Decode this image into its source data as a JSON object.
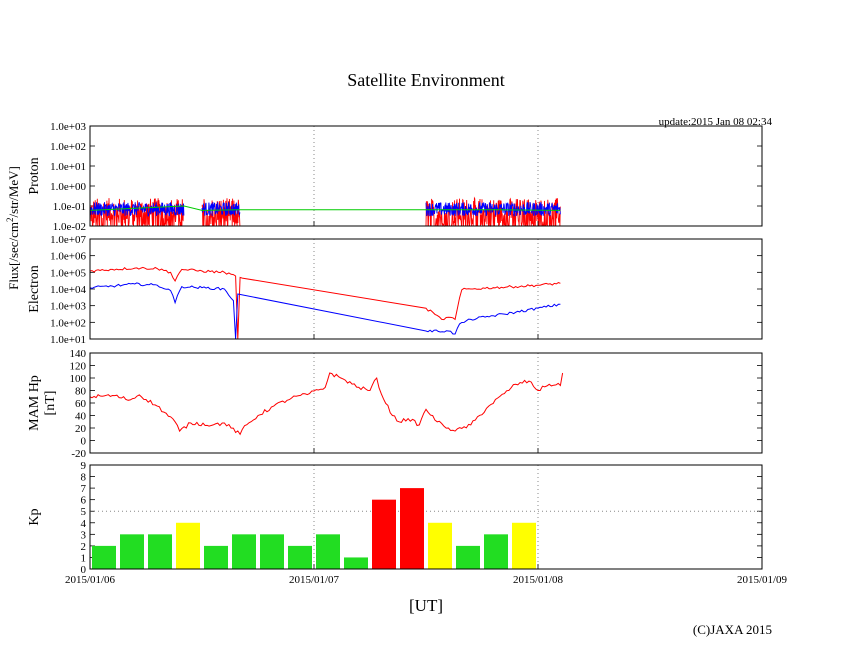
{
  "page": {
    "title": "Satellite Environment",
    "update": "update:2015 Jan 08 02:34",
    "copyright": "(C)JAXA 2015",
    "x_axis_label": "[UT]",
    "x_ticks": [
      "2015/01/06",
      "2015/01/07",
      "2015/01/08",
      "2015/01/09"
    ],
    "flux_label_prefix": "Flux[/sec/cm",
    "flux_label_sup": "2",
    "flux_label_suffix": "/str/MeV]"
  },
  "colors": {
    "red": "#ff0000",
    "blue": "#0000ff",
    "green": "#00cc00",
    "kp_green": "#22dd22",
    "kp_yellow": "#ffff00",
    "kp_red": "#ff0000",
    "grid": "#888888"
  },
  "chart_data": [
    {
      "type": "line",
      "panel": "proton",
      "ylabel": "Proton",
      "scale": "log",
      "ylim": [
        0.01,
        1000
      ],
      "yticks": [
        "1.0e-02",
        "1.0e-01",
        "1.0e+00",
        "1.0e+01",
        "1.0e+02",
        "1.0e+03"
      ],
      "xlim_days": [
        0,
        3
      ],
      "series": [
        {
          "color": "red",
          "noise": "spiky",
          "x": [
            0,
            0.42,
            0.5,
            0.67,
            1.5,
            1.82,
            2.1
          ],
          "segments": [
            [
              0,
              0.42
            ],
            [
              0.5,
              0.67
            ],
            [
              1.5,
              2.1
            ]
          ],
          "y": [
            0.05,
            0.05,
            0.05,
            0.05,
            0.05,
            0.05,
            0.05
          ]
        },
        {
          "color": "blue",
          "noise": "band",
          "x": [
            0,
            0.42,
            0.5,
            0.67,
            1.5,
            1.82,
            2.1
          ],
          "segments": [
            [
              0,
              0.42
            ],
            [
              0.5,
              0.67
            ],
            [
              1.5,
              2.1
            ]
          ],
          "y": [
            0.07,
            0.07,
            0.07,
            0.07,
            0.07,
            0.07,
            0.07
          ]
        },
        {
          "color": "green",
          "x": [
            0,
            0.42,
            0.5,
            0.67,
            1.5,
            1.82,
            2.1
          ],
          "y": [
            0.06,
            0.1,
            0.06,
            0.065,
            0.065,
            0.065,
            0.06
          ]
        }
      ]
    },
    {
      "type": "line",
      "panel": "electron",
      "ylabel": "Electron",
      "scale": "log",
      "ylim": [
        10,
        10000000
      ],
      "yticks": [
        "1.0e+01",
        "1.0e+02",
        "1.0e+03",
        "1.0e+04",
        "1.0e+05",
        "1.0e+06",
        "1.0e+07"
      ],
      "xlim_days": [
        0,
        3
      ],
      "series": [
        {
          "color": "red",
          "x": [
            0,
            0.1,
            0.2,
            0.3,
            0.36,
            0.38,
            0.39,
            0.41,
            0.5,
            0.6,
            0.65,
            0.66,
            0.67,
            0.68,
            1.5,
            1.54,
            1.57,
            1.6,
            1.63,
            1.65,
            1.66,
            1.7,
            1.8,
            1.9,
            2.0,
            2.1
          ],
          "y": [
            120000,
            150000,
            180000,
            170000,
            100000,
            30000,
            60000,
            150000,
            120000,
            100000,
            60000,
            10,
            50000,
            45000,
            700,
            300,
            150,
            200,
            150,
            3000,
            9000,
            10000,
            12000,
            14000,
            17000,
            22000
          ]
        },
        {
          "color": "blue",
          "x": [
            0,
            0.1,
            0.2,
            0.3,
            0.36,
            0.38,
            0.39,
            0.41,
            0.5,
            0.6,
            0.64,
            0.65,
            0.66,
            1.5,
            1.6,
            1.63,
            1.65,
            1.7,
            1.8,
            1.9,
            2.0,
            2.1
          ],
          "y": [
            12000,
            15000,
            20000,
            17000,
            8000,
            1500,
            4000,
            14000,
            12000,
            10000,
            2000,
            10,
            5000,
            30,
            30,
            20,
            80,
            150,
            250,
            400,
            700,
            1200
          ]
        }
      ]
    },
    {
      "type": "line",
      "panel": "mam",
      "ylabel": "MAM Hp",
      "ylabel2": "[nT]",
      "scale": "linear",
      "ylim": [
        -20,
        140
      ],
      "yticks": [
        "-20",
        "0",
        "20",
        "40",
        "60",
        "80",
        "100",
        "120",
        "140"
      ],
      "xlim_days": [
        0,
        3
      ],
      "series": [
        {
          "color": "red",
          "x": [
            0,
            0.1,
            0.18,
            0.22,
            0.3,
            0.38,
            0.4,
            0.45,
            0.55,
            0.6,
            0.67,
            0.68,
            0.75,
            0.82,
            0.9,
            0.98,
            1.05,
            1.07,
            1.12,
            1.2,
            1.25,
            1.28,
            1.3,
            1.35,
            1.38,
            1.42,
            1.47,
            1.5,
            1.55,
            1.6,
            1.63,
            1.7,
            1.78,
            1.85,
            1.9,
            1.96,
            2.0,
            2.05,
            2.1,
            2.11
          ],
          "y": [
            70,
            72,
            65,
            73,
            55,
            30,
            15,
            28,
            25,
            28,
            10,
            18,
            40,
            55,
            68,
            75,
            85,
            108,
            100,
            85,
            80,
            100,
            75,
            40,
            30,
            35,
            25,
            50,
            30,
            20,
            15,
            25,
            55,
            75,
            90,
            95,
            80,
            90,
            88,
            108
          ]
        }
      ]
    },
    {
      "type": "bar",
      "panel": "kp",
      "ylabel": "Kp",
      "ylim": [
        0,
        9
      ],
      "yticks": [
        "0",
        "1",
        "2",
        "3",
        "4",
        "5",
        "6",
        "7",
        "8",
        "9"
      ],
      "xlim_days": [
        0,
        3
      ],
      "bar_width_days": 0.125,
      "threshold_line": 5,
      "bars": [
        {
          "x": 0,
          "value": 2,
          "color": "kp_green"
        },
        {
          "x": 0.125,
          "value": 3,
          "color": "kp_green"
        },
        {
          "x": 0.25,
          "value": 3,
          "color": "kp_green"
        },
        {
          "x": 0.375,
          "value": 4,
          "color": "kp_yellow"
        },
        {
          "x": 0.5,
          "value": 2,
          "color": "kp_green"
        },
        {
          "x": 0.625,
          "value": 3,
          "color": "kp_green"
        },
        {
          "x": 0.75,
          "value": 3,
          "color": "kp_green"
        },
        {
          "x": 0.875,
          "value": 2,
          "color": "kp_green"
        },
        {
          "x": 1.0,
          "value": 3,
          "color": "kp_green"
        },
        {
          "x": 1.125,
          "value": 1,
          "color": "kp_green"
        },
        {
          "x": 1.25,
          "value": 6,
          "color": "kp_red"
        },
        {
          "x": 1.375,
          "value": 7,
          "color": "kp_red"
        },
        {
          "x": 1.5,
          "value": 4,
          "color": "kp_yellow"
        },
        {
          "x": 1.625,
          "value": 2,
          "color": "kp_green"
        },
        {
          "x": 1.75,
          "value": 3,
          "color": "kp_green"
        },
        {
          "x": 1.875,
          "value": 4,
          "color": "kp_yellow"
        }
      ]
    }
  ]
}
